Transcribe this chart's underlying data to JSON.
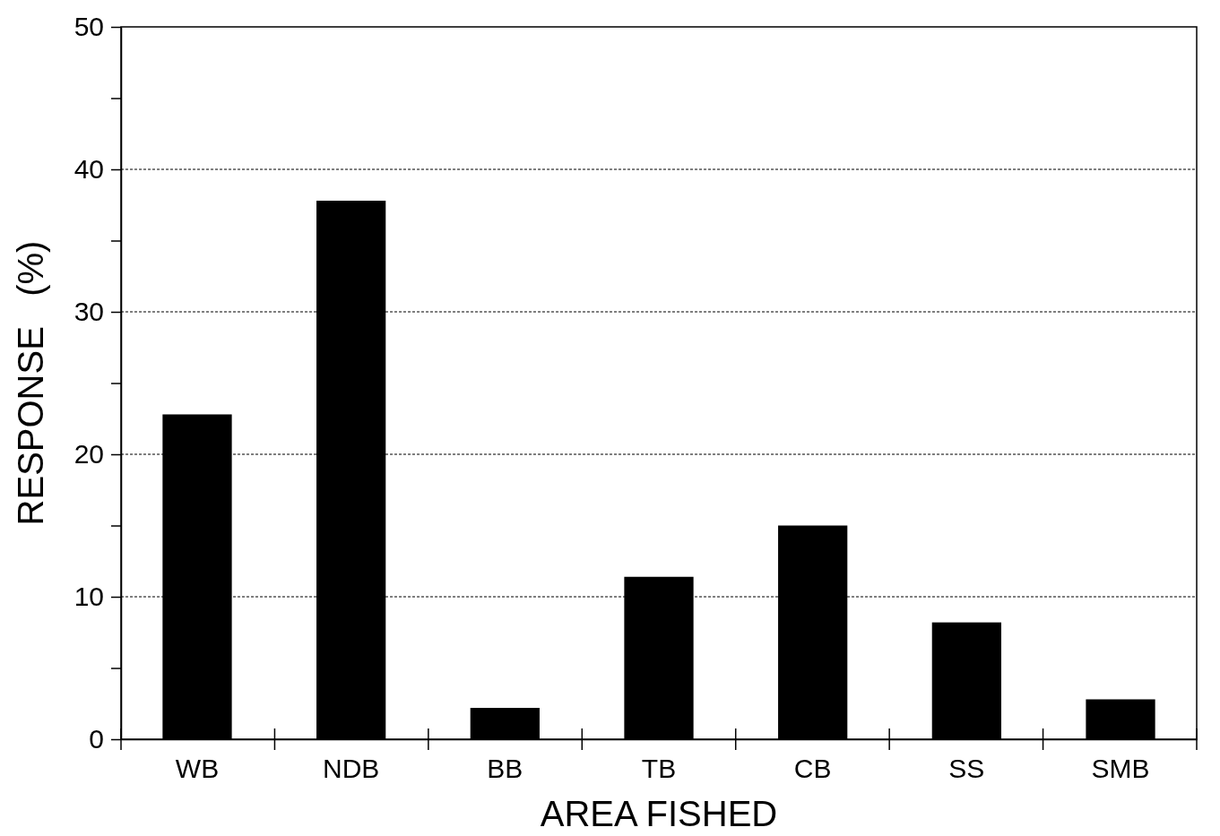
{
  "chart_data": {
    "type": "bar",
    "xlabel": "AREA FISHED",
    "ylabel": "RESPONSE   (%)",
    "categories": [
      "WB",
      "NDB",
      "BB",
      "TB",
      "CB",
      "SS",
      "SMB"
    ],
    "values": [
      22.8,
      37.8,
      2.2,
      11.4,
      15.0,
      8.2,
      2.8
    ],
    "color": "#000000",
    "ylim": [
      0,
      50
    ],
    "yticks": [
      0,
      {
        "value": 5,
        "label": null
      },
      10,
      {
        "value": 15,
        "label": null
      },
      20,
      {
        "value": 25,
        "label": null
      },
      30,
      {
        "value": 35,
        "label": null
      },
      40,
      {
        "value": 45,
        "label": null
      },
      50
    ],
    "grid": "y"
  }
}
